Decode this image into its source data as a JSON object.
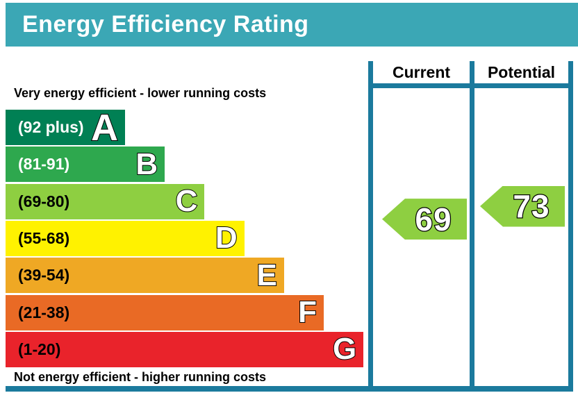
{
  "title": "Energy Efficiency Rating",
  "colors": {
    "header_bg": "#3ba7b5",
    "table_border": "#1b7a9d",
    "page_bg": "#ffffff"
  },
  "notes": {
    "top": "Very energy efficient - lower running costs",
    "bottom": "Not energy efficient - higher running costs"
  },
  "columns": {
    "current": "Current",
    "potential": "Potential"
  },
  "chart_data": {
    "type": "epc-energy-rating-bar",
    "title": "Energy Efficiency Rating",
    "bands": [
      {
        "letter": "A",
        "range": "(92 plus)",
        "min": 92,
        "max": 100,
        "color": "#008054",
        "label_color": "#ffffff"
      },
      {
        "letter": "B",
        "range": "(81-91)",
        "min": 81,
        "max": 91,
        "color": "#2ea84e",
        "label_color": "#ffffff"
      },
      {
        "letter": "C",
        "range": "(69-80)",
        "min": 69,
        "max": 80,
        "color": "#8ecf41",
        "label_color": "#000000"
      },
      {
        "letter": "D",
        "range": "(55-68)",
        "min": 55,
        "max": 68,
        "color": "#fff200",
        "label_color": "#000000"
      },
      {
        "letter": "E",
        "range": "(39-54)",
        "min": 39,
        "max": 54,
        "color": "#efa824",
        "label_color": "#000000"
      },
      {
        "letter": "F",
        "range": "(21-38)",
        "min": 21,
        "max": 38,
        "color": "#e96a25",
        "label_color": "#000000"
      },
      {
        "letter": "G",
        "range": "(1-20)",
        "min": 1,
        "max": 20,
        "color": "#e9232b",
        "label_color": "#000000"
      }
    ],
    "current": {
      "value": 69,
      "band": "C",
      "color": "#8ecf41"
    },
    "potential": {
      "value": 73,
      "band": "C",
      "color": "#8ecf41"
    }
  }
}
